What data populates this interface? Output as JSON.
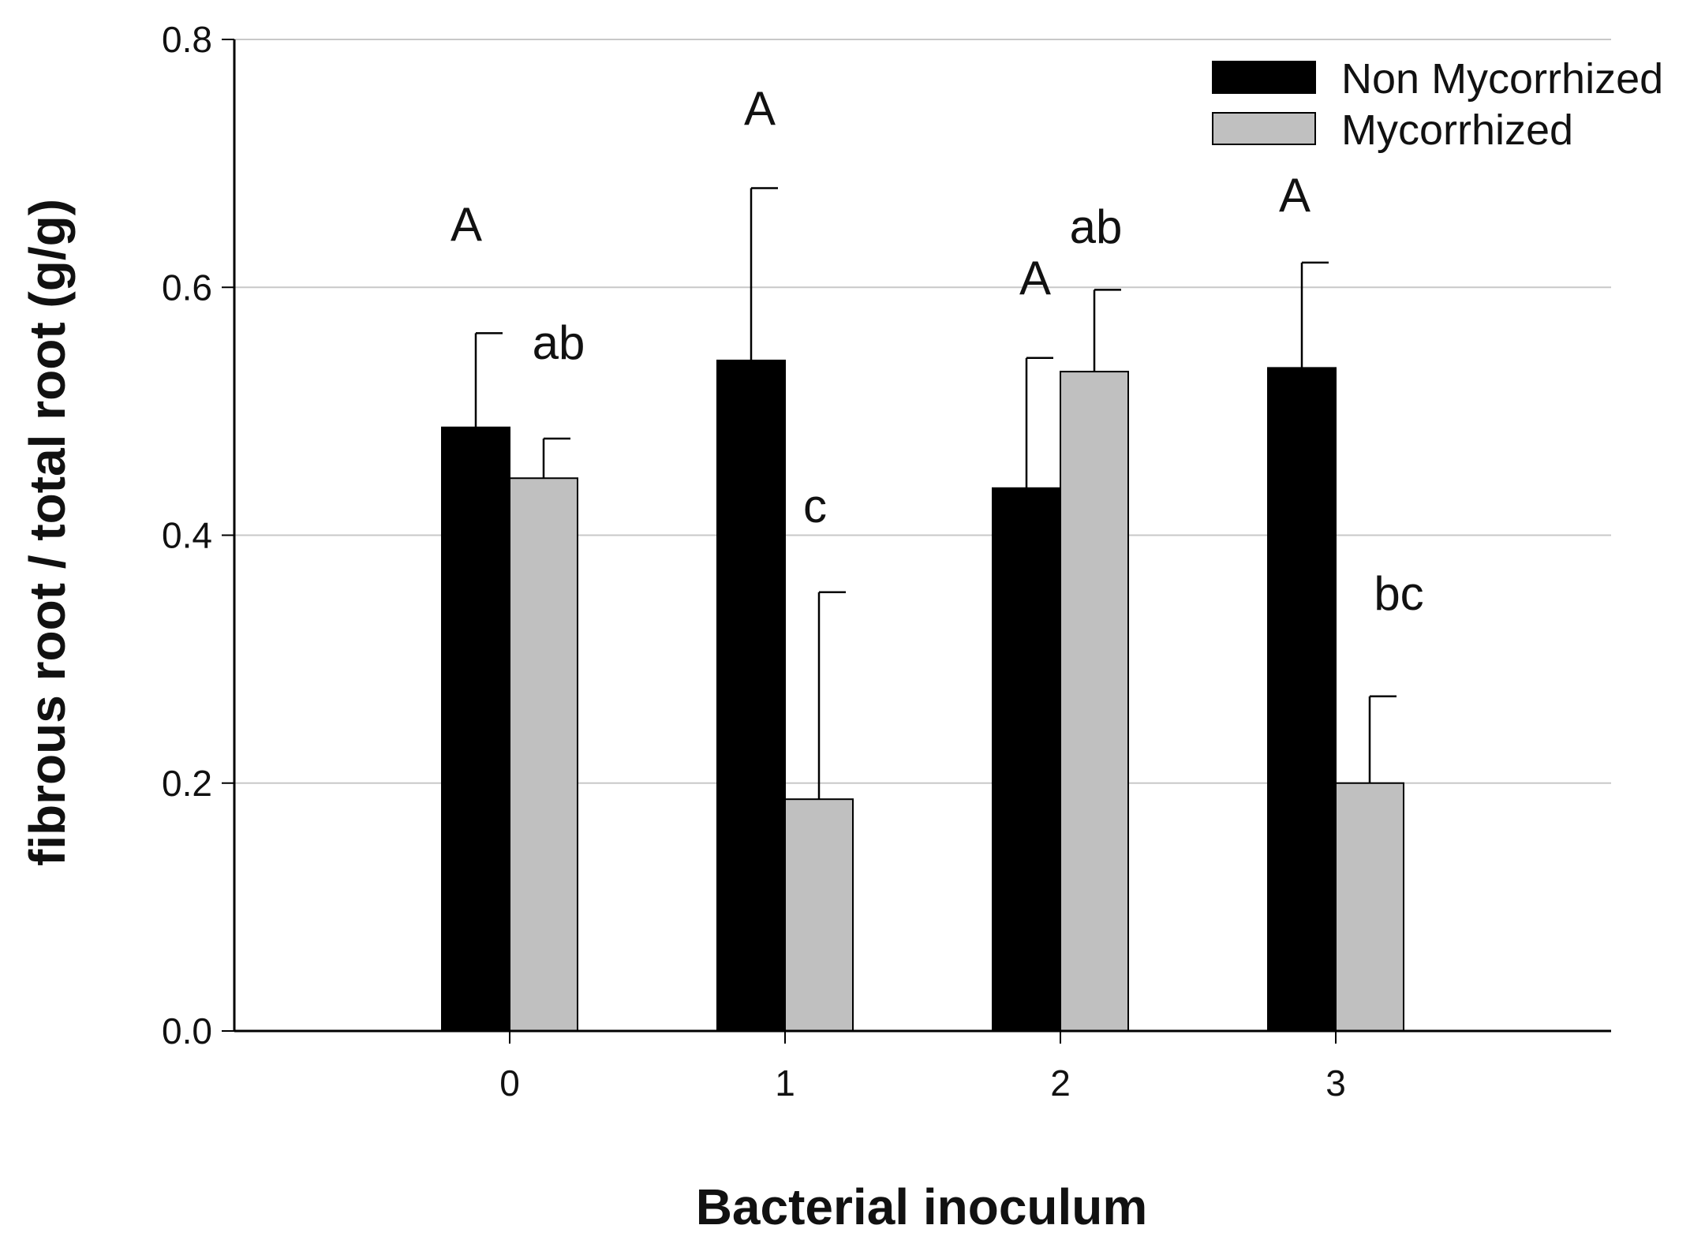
{
  "chart_data": {
    "type": "bar",
    "title": "",
    "xlabel": "Bacterial inoculum",
    "ylabel": "fibrous root / total root (g/g)",
    "categories": [
      "0",
      "1",
      "2",
      "3"
    ],
    "ylim": [
      0,
      0.8
    ],
    "yticks": [
      0.0,
      0.2,
      0.4,
      0.6,
      0.8
    ],
    "ytick_labels": [
      "0.0",
      "0.2",
      "0.4",
      "0.6",
      "0.8"
    ],
    "grid": true,
    "legend_position": "top-right",
    "series": [
      {
        "name": "Non Mycorrhized",
        "color": "#000000",
        "values": [
          0.487,
          0.541,
          0.438,
          0.535
        ],
        "error": [
          0.076,
          0.139,
          0.105,
          0.085
        ],
        "labels": [
          "A",
          "A",
          "A",
          "A"
        ]
      },
      {
        "name": "Mycorrhized",
        "color": "#c0c0c0",
        "values": [
          0.446,
          0.187,
          0.532,
          0.2
        ],
        "error": [
          0.032,
          0.167,
          0.066,
          0.07
        ],
        "labels": [
          "ab",
          "c",
          "ab",
          "bc"
        ]
      }
    ]
  }
}
